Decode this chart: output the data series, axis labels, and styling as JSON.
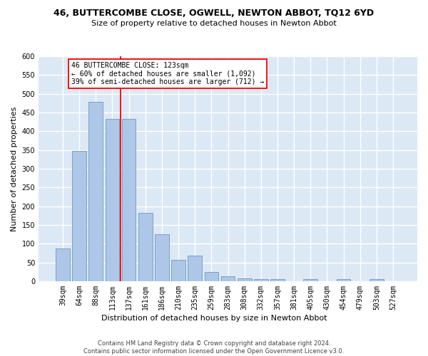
{
  "title": "46, BUTTERCOMBE CLOSE, OGWELL, NEWTON ABBOT, TQ12 6YD",
  "subtitle": "Size of property relative to detached houses in Newton Abbot",
  "xlabel": "Distribution of detached houses by size in Newton Abbot",
  "ylabel": "Number of detached properties",
  "categories": [
    "39sqm",
    "64sqm",
    "88sqm",
    "113sqm",
    "137sqm",
    "161sqm",
    "186sqm",
    "210sqm",
    "235sqm",
    "259sqm",
    "283sqm",
    "308sqm",
    "332sqm",
    "357sqm",
    "381sqm",
    "405sqm",
    "430sqm",
    "454sqm",
    "479sqm",
    "503sqm",
    "527sqm"
  ],
  "values": [
    88,
    347,
    478,
    433,
    433,
    183,
    125,
    57,
    68,
    25,
    13,
    8,
    5,
    5,
    0,
    5,
    0,
    5,
    0,
    5,
    0
  ],
  "bar_color": "#aec6e8",
  "bar_edge_color": "#6a9bbf",
  "background_color": "#dde8f5",
  "grid_color": "#ffffff",
  "annotation_line1": "46 BUTTERCOMBE CLOSE: 123sqm",
  "annotation_line2": "← 60% of detached houses are smaller (1,092)",
  "annotation_line3": "39% of semi-detached houses are larger (712) →",
  "red_line_x": 3.5,
  "ylim": [
    0,
    600
  ],
  "yticks": [
    0,
    50,
    100,
    150,
    200,
    250,
    300,
    350,
    400,
    450,
    500,
    550,
    600
  ],
  "footnote_line1": "Contains HM Land Registry data © Crown copyright and database right 2024.",
  "footnote_line2": "Contains public sector information licensed under the Open Government Licence v3.0.",
  "fig_bg": "#ffffff",
  "title_fontsize": 9,
  "subtitle_fontsize": 8,
  "ylabel_fontsize": 8,
  "xlabel_fontsize": 8,
  "tick_fontsize": 7,
  "annot_fontsize": 7,
  "footnote_fontsize": 6
}
